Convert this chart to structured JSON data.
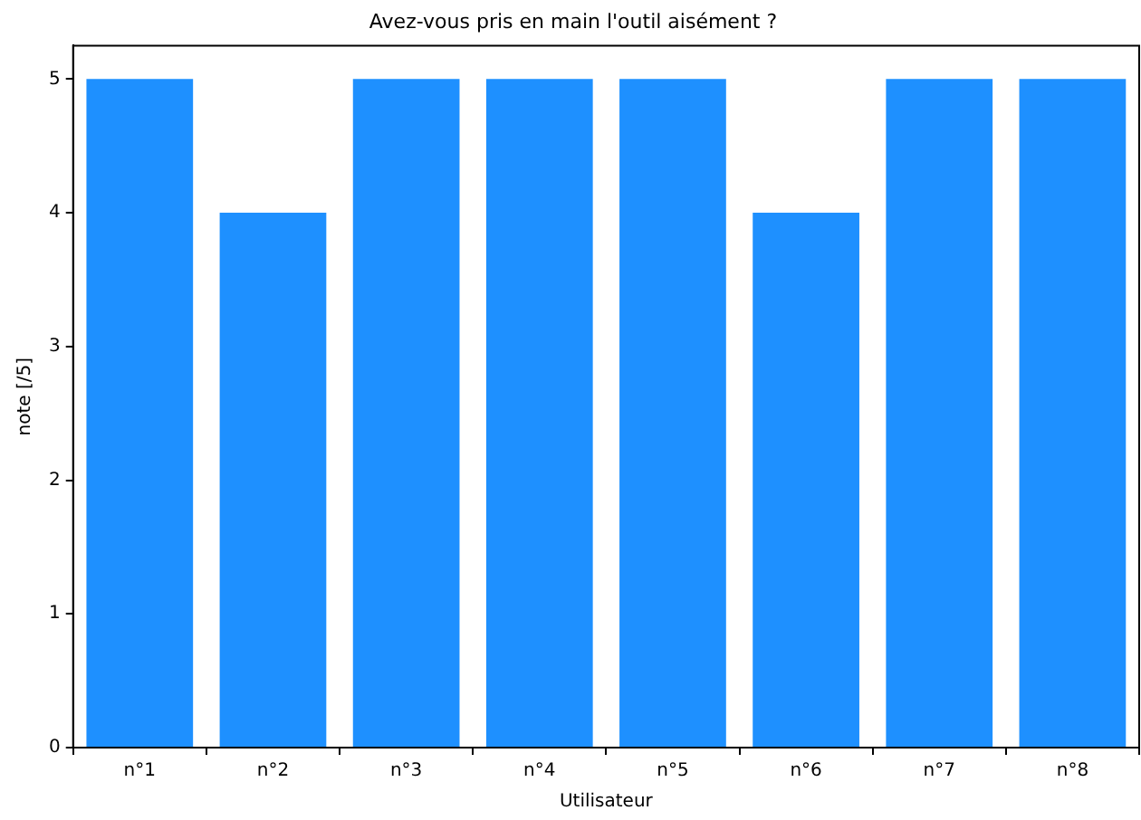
{
  "chart_data": {
    "type": "bar",
    "title": "Avez-vous pris en main l'outil aisément ?",
    "xlabel": "Utilisateur",
    "ylabel": "note [/5]",
    "categories": [
      "n°1",
      "n°2",
      "n°3",
      "n°4",
      "n°5",
      "n°6",
      "n°7",
      "n°8"
    ],
    "values": [
      5,
      4,
      5,
      5,
      5,
      4,
      5,
      5
    ],
    "color": "#1e90ff",
    "ylim": [
      0,
      5.25
    ],
    "yticks": [
      0,
      1,
      2,
      3,
      4,
      5
    ],
    "grid": false,
    "legend": false
  }
}
